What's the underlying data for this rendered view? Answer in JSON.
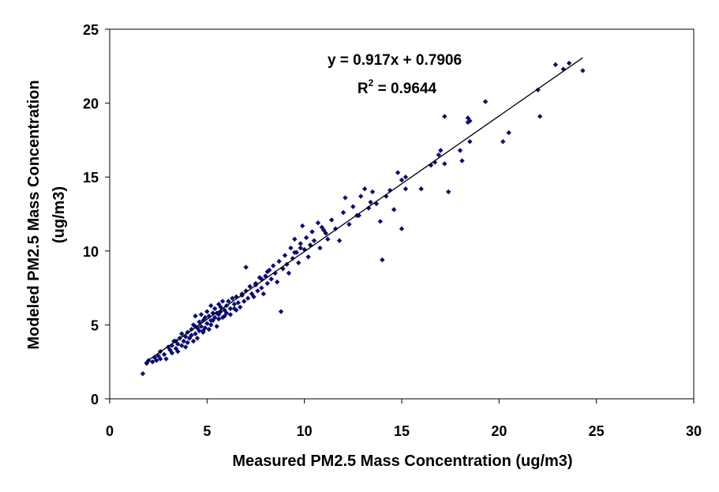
{
  "chart_data": {
    "type": "scatter",
    "title": "",
    "xlabel": "Measured PM2.5 Mass Concentration (ug/m3)",
    "ylabel_lines": [
      "Modeled PM2.5 Mass Concentration",
      "(ug/m3)"
    ],
    "xlim": [
      0,
      30
    ],
    "ylim": [
      0,
      25
    ],
    "xticks": [
      0,
      5,
      10,
      15,
      20,
      25,
      30
    ],
    "yticks": [
      0,
      5,
      10,
      15,
      20,
      25
    ],
    "grid": false,
    "legend": "none",
    "marker_color": "#0a0a78",
    "trendline": {
      "slope": 0.917,
      "intercept": 0.7906,
      "x_range": [
        1.8,
        24.3
      ],
      "equation": "y = 0.917x + 0.7906",
      "r2_prefix": "R",
      "r2_exp": "2",
      "r2_suffix": " = 0.9644"
    },
    "points": [
      [
        1.7,
        1.7
      ],
      [
        1.9,
        2.4
      ],
      [
        2.0,
        2.6
      ],
      [
        2.2,
        2.5
      ],
      [
        2.3,
        2.8
      ],
      [
        2.4,
        2.6
      ],
      [
        2.5,
        2.9
      ],
      [
        2.6,
        3.2
      ],
      [
        2.6,
        2.7
      ],
      [
        2.8,
        3.0
      ],
      [
        2.9,
        2.7
      ],
      [
        3.0,
        3.5
      ],
      [
        3.1,
        3.3
      ],
      [
        3.2,
        3.6
      ],
      [
        3.2,
        3.1
      ],
      [
        3.3,
        3.9
      ],
      [
        3.4,
        3.4
      ],
      [
        3.5,
        3.7
      ],
      [
        3.5,
        3.2
      ],
      [
        3.6,
        4.1
      ],
      [
        3.7,
        3.6
      ],
      [
        3.7,
        4.4
      ],
      [
        3.8,
        3.9
      ],
      [
        3.9,
        4.2
      ],
      [
        3.9,
        3.5
      ],
      [
        4.0,
        4.5
      ],
      [
        4.0,
        3.8
      ],
      [
        4.1,
        4.1
      ],
      [
        4.2,
        4.7
      ],
      [
        4.2,
        4.3
      ],
      [
        4.3,
        5.0
      ],
      [
        4.3,
        3.9
      ],
      [
        4.4,
        4.4
      ],
      [
        4.4,
        5.6
      ],
      [
        4.5,
        4.8
      ],
      [
        4.5,
        4.1
      ],
      [
        4.6,
        5.2
      ],
      [
        4.6,
        4.6
      ],
      [
        4.7,
        5.7
      ],
      [
        4.7,
        4.9
      ],
      [
        4.8,
        5.3
      ],
      [
        4.8,
        4.5
      ],
      [
        4.9,
        5.5
      ],
      [
        4.9,
        4.8
      ],
      [
        5.0,
        5.9
      ],
      [
        5.0,
        5.1
      ],
      [
        5.1,
        4.7
      ],
      [
        5.1,
        5.6
      ],
      [
        5.2,
        6.3
      ],
      [
        5.2,
        5.0
      ],
      [
        5.3,
        5.8
      ],
      [
        5.3,
        5.3
      ],
      [
        5.4,
        6.1
      ],
      [
        5.4,
        5.5
      ],
      [
        5.5,
        4.9
      ],
      [
        5.5,
        5.8
      ],
      [
        5.6,
        6.4
      ],
      [
        5.6,
        5.4
      ],
      [
        5.7,
        5.9
      ],
      [
        5.7,
        6.2
      ],
      [
        5.8,
        5.5
      ],
      [
        5.8,
        6.6
      ],
      [
        5.9,
        6.0
      ],
      [
        5.9,
        5.6
      ],
      [
        6.0,
        6.3
      ],
      [
        6.0,
        5.8
      ],
      [
        6.1,
        6.6
      ],
      [
        6.2,
        6.1
      ],
      [
        6.2,
        5.7
      ],
      [
        6.3,
        6.8
      ],
      [
        6.4,
        6.4
      ],
      [
        6.5,
        6.0
      ],
      [
        6.5,
        6.9
      ],
      [
        6.6,
        6.5
      ],
      [
        6.7,
        6.2
      ],
      [
        6.8,
        7.1
      ],
      [
        6.9,
        6.6
      ],
      [
        7.0,
        8.9
      ],
      [
        7.0,
        7.3
      ],
      [
        7.1,
        6.8
      ],
      [
        7.2,
        7.6
      ],
      [
        7.3,
        7.1
      ],
      [
        7.4,
        6.9
      ],
      [
        7.5,
        7.8
      ],
      [
        7.6,
        7.3
      ],
      [
        7.7,
        8.2
      ],
      [
        7.8,
        7.5
      ],
      [
        7.9,
        7.1
      ],
      [
        8.0,
        8.3
      ],
      [
        8.1,
        7.8
      ],
      [
        8.2,
        8.7
      ],
      [
        8.3,
        8.1
      ],
      [
        8.4,
        9.0
      ],
      [
        8.5,
        8.5
      ],
      [
        8.6,
        7.9
      ],
      [
        8.7,
        9.3
      ],
      [
        8.8,
        5.9
      ],
      [
        8.9,
        8.8
      ],
      [
        9.0,
        9.7
      ],
      [
        9.1,
        9.1
      ],
      [
        9.2,
        8.5
      ],
      [
        9.3,
        10.2
      ],
      [
        9.4,
        9.5
      ],
      [
        9.5,
        10.8
      ],
      [
        9.6,
        9.9
      ],
      [
        9.7,
        9.2
      ],
      [
        9.8,
        10.5
      ],
      [
        9.9,
        11.7
      ],
      [
        10.0,
        10.1
      ],
      [
        10.1,
        10.9
      ],
      [
        10.2,
        9.6
      ],
      [
        10.3,
        10.4
      ],
      [
        10.4,
        11.3
      ],
      [
        10.5,
        10.7
      ],
      [
        10.7,
        11.9
      ],
      [
        10.8,
        10.2
      ],
      [
        11.0,
        11.4
      ],
      [
        11.2,
        10.8
      ],
      [
        11.4,
        12.1
      ],
      [
        11.6,
        11.5
      ],
      [
        11.8,
        10.7
      ],
      [
        12.0,
        12.6
      ],
      [
        12.1,
        13.6
      ],
      [
        12.3,
        11.8
      ],
      [
        12.5,
        13.0
      ],
      [
        12.7,
        12.4
      ],
      [
        12.9,
        13.7
      ],
      [
        13.1,
        14.2
      ],
      [
        13.3,
        12.9
      ],
      [
        13.5,
        14.0
      ],
      [
        13.7,
        13.2
      ],
      [
        13.9,
        12.0
      ],
      [
        14.0,
        9.4
      ],
      [
        14.2,
        13.7
      ],
      [
        14.4,
        14.1
      ],
      [
        14.6,
        12.8
      ],
      [
        14.8,
        15.3
      ],
      [
        15.0,
        14.8
      ],
      [
        15.0,
        11.5
      ],
      [
        15.2,
        15.0
      ],
      [
        15.2,
        14.2
      ],
      [
        16.0,
        14.2
      ],
      [
        16.5,
        15.8
      ],
      [
        16.7,
        16.0
      ],
      [
        16.9,
        16.5
      ],
      [
        17.0,
        16.8
      ],
      [
        17.2,
        19.1
      ],
      [
        17.2,
        15.9
      ],
      [
        17.4,
        14.0
      ],
      [
        18.0,
        16.8
      ],
      [
        18.1,
        16.1
      ],
      [
        18.4,
        19.0
      ],
      [
        18.4,
        18.7
      ],
      [
        18.5,
        18.8
      ],
      [
        18.5,
        17.4
      ],
      [
        19.3,
        20.1
      ],
      [
        20.2,
        17.4
      ],
      [
        20.5,
        18.0
      ],
      [
        22.0,
        20.9
      ],
      [
        22.1,
        19.1
      ],
      [
        22.9,
        22.6
      ],
      [
        23.3,
        22.3
      ],
      [
        23.6,
        22.7
      ],
      [
        24.3,
        22.2
      ],
      [
        6.4,
        6.1
      ],
      [
        4.8,
        4.6
      ],
      [
        9.5,
        9.9
      ],
      [
        11.1,
        11.2
      ],
      [
        7.5,
        7.7
      ],
      [
        5.6,
        5.7
      ],
      [
        3.4,
        3.9
      ],
      [
        12.8,
        12.4
      ],
      [
        10.9,
        11.6
      ],
      [
        8.1,
        8.6
      ],
      [
        6.8,
        7.0
      ],
      [
        4.4,
        4.9
      ],
      [
        13.4,
        13.3
      ],
      [
        9.8,
        10.2
      ],
      [
        5.2,
        5.3
      ],
      [
        7.8,
        8.1
      ]
    ]
  }
}
